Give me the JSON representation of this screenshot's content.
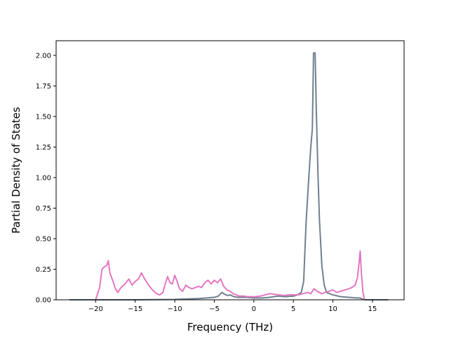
{
  "chart_data": {
    "type": "line",
    "title": "",
    "xlabel": "Frequency (THz)",
    "ylabel": "Partial Density of States",
    "xlim": [
      -25,
      19
    ],
    "ylim": [
      0,
      2.12
    ],
    "xticks": [
      -20,
      -15,
      -10,
      -5,
      0,
      5,
      10,
      15
    ],
    "xtick_labels": [
      "−20",
      "−15",
      "−10",
      "−5",
      "0",
      "5",
      "10",
      "15"
    ],
    "yticks": [
      0,
      0.25,
      0.5,
      0.75,
      1.0,
      1.25,
      1.5,
      1.75,
      2.0
    ],
    "ytick_labels": [
      "0.00",
      "0.25",
      "0.50",
      "0.75",
      "1.00",
      "1.25",
      "1.50",
      "1.75",
      "2.00"
    ],
    "grid": false,
    "legend": "none",
    "series": [
      {
        "color": "#708090",
        "x": [
          -23.3,
          -20.0,
          -15.0,
          -10.0,
          -7.0,
          -6.0,
          -5.0,
          -4.5,
          -4.2,
          -4.0,
          -3.7,
          -3.3,
          -3.0,
          -2.5,
          -2.0,
          -1.0,
          0.0,
          1.0,
          2.0,
          3.0,
          4.0,
          5.0,
          5.5,
          6.0,
          6.3,
          6.6,
          6.9,
          7.2,
          7.4,
          7.55,
          7.75,
          7.9,
          8.1,
          8.3,
          8.6,
          8.9,
          9.2,
          9.6,
          10.0,
          11.0,
          12.0,
          13.0,
          13.4,
          14.0,
          17.0
        ],
        "y": [
          0.0,
          0.0,
          0.0,
          0.003,
          0.01,
          0.015,
          0.02,
          0.03,
          0.05,
          0.06,
          0.045,
          0.035,
          0.04,
          0.025,
          0.02,
          0.02,
          0.015,
          0.015,
          0.02,
          0.03,
          0.025,
          0.03,
          0.04,
          0.06,
          0.15,
          0.62,
          0.95,
          1.25,
          1.4,
          2.02,
          2.02,
          1.55,
          1.05,
          0.65,
          0.28,
          0.12,
          0.06,
          0.05,
          0.04,
          0.025,
          0.02,
          0.015,
          0.015,
          0.0,
          0.0
        ]
      },
      {
        "color": "#e377c2",
        "x": [
          -20.0,
          -19.5,
          -19.2,
          -18.9,
          -18.6,
          -18.4,
          -18.2,
          -17.8,
          -17.5,
          -17.2,
          -16.8,
          -16.3,
          -15.8,
          -15.4,
          -15.0,
          -14.6,
          -14.2,
          -13.8,
          -13.3,
          -12.8,
          -12.3,
          -11.9,
          -11.5,
          -11.2,
          -10.9,
          -10.6,
          -10.3,
          -10.0,
          -9.7,
          -9.4,
          -9.0,
          -8.6,
          -8.2,
          -7.8,
          -7.4,
          -7.0,
          -6.6,
          -6.2,
          -5.8,
          -5.4,
          -5.0,
          -4.6,
          -4.2,
          -3.8,
          -3.4,
          -3.0,
          -2.6,
          -2.2,
          -1.8,
          -1.3,
          -0.8,
          -0.3,
          0.2,
          0.8,
          1.4,
          2.0,
          2.6,
          3.2,
          3.8,
          4.4,
          5.0,
          5.6,
          6.2,
          6.8,
          7.2,
          7.6,
          8.0,
          8.3,
          8.6,
          9.0,
          9.5,
          10.0,
          10.5,
          11.0,
          11.5,
          12.0,
          12.4,
          12.8,
          13.1,
          13.3,
          13.45,
          13.6,
          13.8,
          14.0
        ],
        "y": [
          0.0,
          0.1,
          0.25,
          0.27,
          0.28,
          0.32,
          0.22,
          0.15,
          0.09,
          0.06,
          0.1,
          0.13,
          0.17,
          0.12,
          0.15,
          0.17,
          0.22,
          0.17,
          0.12,
          0.08,
          0.05,
          0.04,
          0.06,
          0.13,
          0.19,
          0.14,
          0.13,
          0.2,
          0.15,
          0.09,
          0.07,
          0.12,
          0.1,
          0.09,
          0.1,
          0.11,
          0.1,
          0.14,
          0.16,
          0.13,
          0.16,
          0.14,
          0.17,
          0.11,
          0.08,
          0.07,
          0.05,
          0.04,
          0.03,
          0.03,
          0.025,
          0.025,
          0.025,
          0.03,
          0.04,
          0.05,
          0.045,
          0.04,
          0.035,
          0.04,
          0.04,
          0.04,
          0.05,
          0.06,
          0.05,
          0.09,
          0.07,
          0.06,
          0.05,
          0.06,
          0.07,
          0.08,
          0.06,
          0.07,
          0.08,
          0.09,
          0.1,
          0.12,
          0.18,
          0.3,
          0.4,
          0.22,
          0.06,
          0.0
        ]
      }
    ]
  }
}
